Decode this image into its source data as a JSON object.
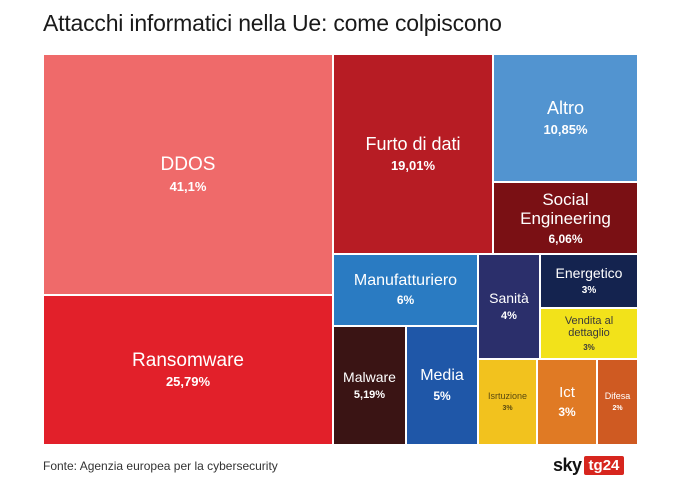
{
  "header": {
    "title": "Attacchi informatici nella Ue: come colpiscono"
  },
  "footer": {
    "source": "Fonte: Agenzia europea per la cybersecurity",
    "logo_sky": "sky",
    "logo_tg": "tg24"
  },
  "chart_data": {
    "type": "treemap",
    "title": "Attacchi informatici nella Ue: come colpiscono",
    "items": [
      {
        "label": "DDOS",
        "value_text": "41,1%",
        "value": 41.1,
        "color": "#ef6a6a",
        "text_color": "#ffffff"
      },
      {
        "label": "Ransomware",
        "value_text": "25,79%",
        "value": 25.79,
        "color": "#e2202a",
        "text_color": "#ffffff"
      },
      {
        "label": "Furto di dati",
        "value_text": "19,01%",
        "value": 19.01,
        "color": "#b71c24",
        "text_color": "#ffffff"
      },
      {
        "label": "Altro",
        "value_text": "10,85%",
        "value": 10.85,
        "color": "#5294d0",
        "text_color": "#ffffff"
      },
      {
        "label": "Social Engineering",
        "value_text": "6,06%",
        "value": 6.06,
        "color": "#7a1014",
        "text_color": "#ffffff"
      },
      {
        "label": "Manufatturiero",
        "value_text": "6%",
        "value": 6,
        "color": "#2a7bc2",
        "text_color": "#ffffff"
      },
      {
        "label": "Sanità",
        "value_text": "4%",
        "value": 4,
        "color": "#2b2f6b",
        "text_color": "#ffffff"
      },
      {
        "label": "Energetico",
        "value_text": "3%",
        "value": 3,
        "color": "#14234f",
        "text_color": "#ffffff"
      },
      {
        "label": "Vendita al dettaglio",
        "value_text": "3%",
        "value": 3,
        "color": "#f2e21a",
        "text_color": "#3a3a3a"
      },
      {
        "label": "Malware",
        "value_text": "5,19%",
        "value": 5.19,
        "color": "#3a1414",
        "text_color": "#ffffff"
      },
      {
        "label": "Media",
        "value_text": "5%",
        "value": 5,
        "color": "#1f57a8",
        "text_color": "#ffffff"
      },
      {
        "label": "Isrtuzione",
        "value_text": "3%",
        "value": 3,
        "color": "#f2c21e",
        "text_color": "#5a4a10"
      },
      {
        "label": "Ict",
        "value_text": "3%",
        "value": 3,
        "color": "#e07a24",
        "text_color": "#ffffff"
      },
      {
        "label": "Difesa",
        "value_text": "2%",
        "value": 2,
        "color": "#cf5a22",
        "text_color": "#ffffff"
      }
    ]
  }
}
